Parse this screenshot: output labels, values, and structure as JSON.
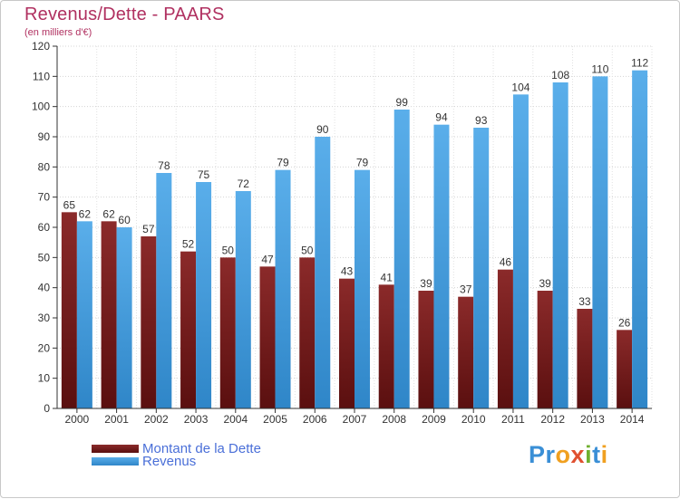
{
  "logo_text": "Proxiti",
  "chart_data": {
    "type": "bar",
    "title": "Revenus/Dette - PAARS",
    "subtitle": "(en milliers d'€)",
    "xlabel": "",
    "ylabel": "",
    "ylim": [
      0,
      120
    ],
    "yticks": [
      0,
      10,
      20,
      30,
      40,
      50,
      60,
      70,
      80,
      90,
      100,
      110,
      120
    ],
    "grid": true,
    "legend_position": "bottom-left",
    "categories": [
      "2000",
      "2001",
      "2002",
      "2003",
      "2004",
      "2005",
      "2006",
      "2007",
      "2008",
      "2009",
      "2010",
      "2011",
      "2012",
      "2013",
      "2014"
    ],
    "series": [
      {
        "name": "Montant de la Dette",
        "color": "#7a1c1c",
        "values": [
          65,
          62,
          57,
          52,
          50,
          47,
          50,
          43,
          41,
          39,
          37,
          46,
          39,
          33,
          26
        ]
      },
      {
        "name": "Revenus",
        "color": "#4aa3e3",
        "values": [
          62,
          60,
          78,
          75,
          72,
          79,
          90,
          79,
          99,
          94,
          93,
          104,
          108,
          110,
          112
        ]
      }
    ]
  }
}
